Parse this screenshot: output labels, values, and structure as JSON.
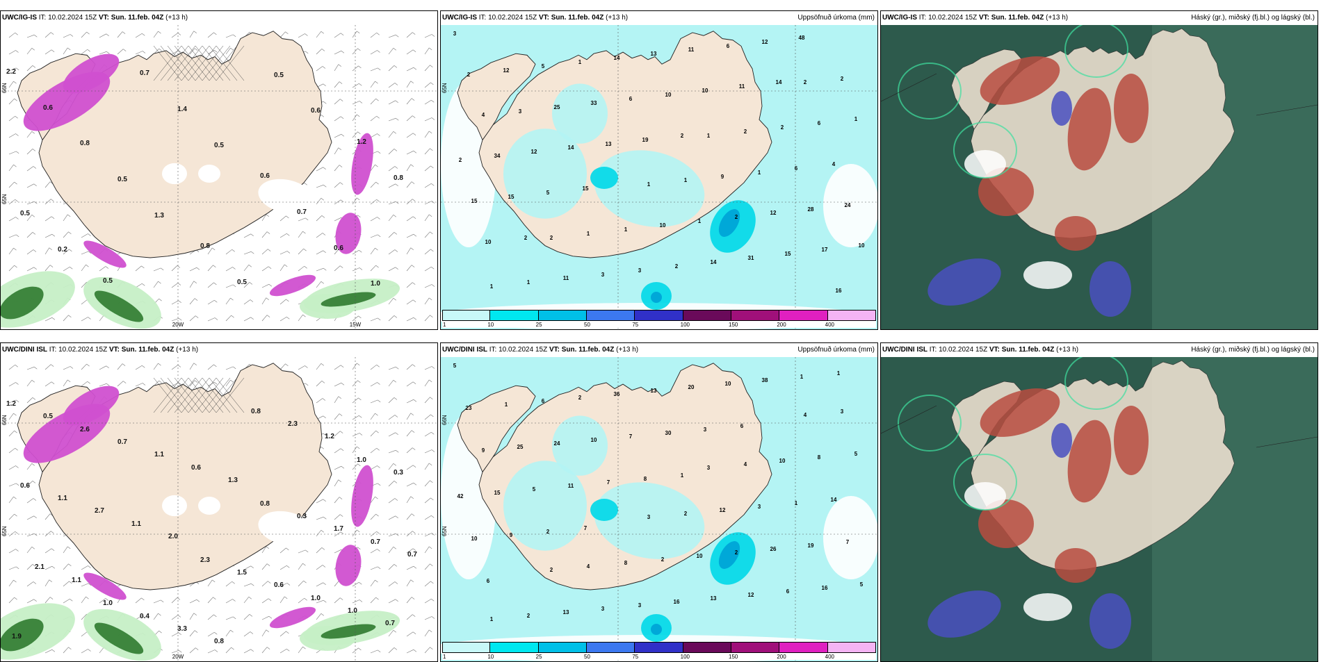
{
  "panels": [
    {
      "title_model": "UWC/IG-IS",
      "title_it_label": "IT:",
      "title_it": "10.02.2024 15Z",
      "title_vt_label": "VT:",
      "title_vt": "Sun. 11.feb. 04Z",
      "title_lead": "(+13 h)",
      "right_title": "",
      "values": [
        "2.2",
        "0.6",
        "0.5",
        "1.2",
        "0.8",
        "0.6",
        "0.7",
        "0.7",
        "0.8",
        "0.5",
        "0.8",
        "0.6",
        "1.4",
        "0.5",
        "0.5",
        "0.5",
        "1.0",
        "0.5",
        "0.2",
        "0.6",
        "1.3"
      ],
      "axis": {
        "lat1": "66N",
        "lat2": "65N",
        "lon1": "20W",
        "lon2": "15W"
      }
    },
    {
      "title_model": "UWC/IG-IS",
      "title_it_label": "IT:",
      "title_it": "10.02.2024 15Z",
      "title_vt_label": "VT:",
      "title_vt": "Sun. 11.feb. 04Z",
      "title_lead": "(+13 h)",
      "right_title": "Uppsöfnuð úrkoma (mm)",
      "values": [
        "3",
        "1",
        "2",
        "2",
        "1",
        "1",
        "2",
        "1",
        "2",
        "1",
        "1",
        "2",
        "1",
        "2",
        "9",
        "11",
        "6",
        "10",
        "12",
        "1",
        "3",
        "1",
        "1",
        "5",
        "6",
        "3",
        "4",
        "2",
        "1",
        "4",
        "2",
        "3",
        "12",
        "14",
        "2",
        "14",
        "25",
        "28",
        "13",
        "34",
        "31",
        "33",
        "24",
        "11",
        "12",
        "15",
        "6",
        "15",
        "6",
        "14",
        "17",
        "10",
        "15",
        "12",
        "13",
        "10",
        "10",
        "5",
        "48",
        "19",
        "10",
        "11",
        "15",
        "16",
        "2",
        "2",
        "14"
      ],
      "axis": {
        "lat1": "65N"
      }
    },
    {
      "title_model": "UWC/IG-IS",
      "title_it_label": "IT:",
      "title_it": "10.02.2024 15Z",
      "title_vt_label": "VT:",
      "title_vt": "Sun. 11.feb. 04Z",
      "title_lead": "(+13 h)",
      "right_title": "Háský (gr.), miðský (fj.bl.) og lágský (bl.)",
      "values": [],
      "axis": {}
    },
    {
      "title_model": "UWC/DINI ISL",
      "title_it_label": "IT:",
      "title_it": "10.02.2024 15Z",
      "title_vt_label": "VT:",
      "title_vt": "Sun. 11.feb. 04Z",
      "title_lead": "(+13 h)",
      "right_title": "",
      "values": [
        "1.2",
        "0.8",
        "1.0",
        "1.0",
        "2.3",
        "0.5",
        "0.3",
        "0.4",
        "0.3",
        "1.5",
        "2.6",
        "1.7",
        "3.3",
        "0.6",
        "0.6",
        "0.7",
        "0.7",
        "0.8",
        "1.1",
        "1.0",
        "1.1",
        "0.7",
        "0.8",
        "2.7",
        "1.0",
        "0.6",
        "2.1",
        "2.3",
        "1.1",
        "0.7",
        "1.3",
        "1.1",
        "1.2",
        "2.0",
        "1.9"
      ],
      "axis": {
        "lat1": "66N",
        "lat2": "65N",
        "lon1": "20W"
      }
    },
    {
      "title_model": "UWC/DINI ISL",
      "title_it_label": "IT:",
      "title_it": "10.02.2024 15Z",
      "title_vt_label": "VT:",
      "title_vt": "Sun. 11.feb. 04Z",
      "title_lead": "(+13 h)",
      "right_title": "Uppsöfnuð úrkoma (mm)",
      "values": [
        "5",
        "3",
        "2",
        "4",
        "3",
        "1",
        "4",
        "4",
        "3",
        "2",
        "2",
        "10",
        "8",
        "23",
        "12",
        "13",
        "8",
        "2",
        "1",
        "3",
        "3",
        "5",
        "10",
        "6",
        "1",
        "3",
        "9",
        "2",
        "2",
        "14",
        "16",
        "25",
        "26",
        "36",
        "42",
        "13",
        "24",
        "19",
        "13",
        "15",
        "12",
        "10",
        "7",
        "20",
        "5",
        "6",
        "7",
        "10",
        "10",
        "11",
        "16",
        "30",
        "9",
        "38",
        "7",
        "5",
        "3",
        "2",
        "1",
        "8",
        "6",
        "6",
        "7",
        "1",
        "1"
      ],
      "axis": {
        "lat1": "66N",
        "lat2": "65N"
      }
    },
    {
      "title_model": "UWC/DINI ISL",
      "title_it_label": "IT:",
      "title_it": "10.02.2024 15Z",
      "title_vt_label": "VT:",
      "title_vt": "Sun. 11.feb. 04Z",
      "title_lead": "(+13 h)",
      "right_title": "Háský (gr.), miðský (fj.bl.) og lágský (bl.)",
      "values": [],
      "axis": {}
    }
  ],
  "colorbar": {
    "ticks": [
      "1",
      "10",
      "25",
      "50",
      "75",
      "100",
      "150",
      "200",
      "400"
    ],
    "colors": [
      "#c8f8f8",
      "#00e8f0",
      "#00c0e8",
      "#3c78f0",
      "#3030c8",
      "#6a0a5a",
      "#a0107a",
      "#e020c0",
      "#f4b4f4"
    ]
  },
  "colors": {
    "land": "#f5e6d6",
    "snow_purple": "#d050d0",
    "rain_green": "#2f7a2f",
    "precip_light": "#b4f4f4",
    "cloud_high": "#2d5a4c",
    "cloud_mid": "#b84c40",
    "cloud_low": "#4a50c0"
  }
}
